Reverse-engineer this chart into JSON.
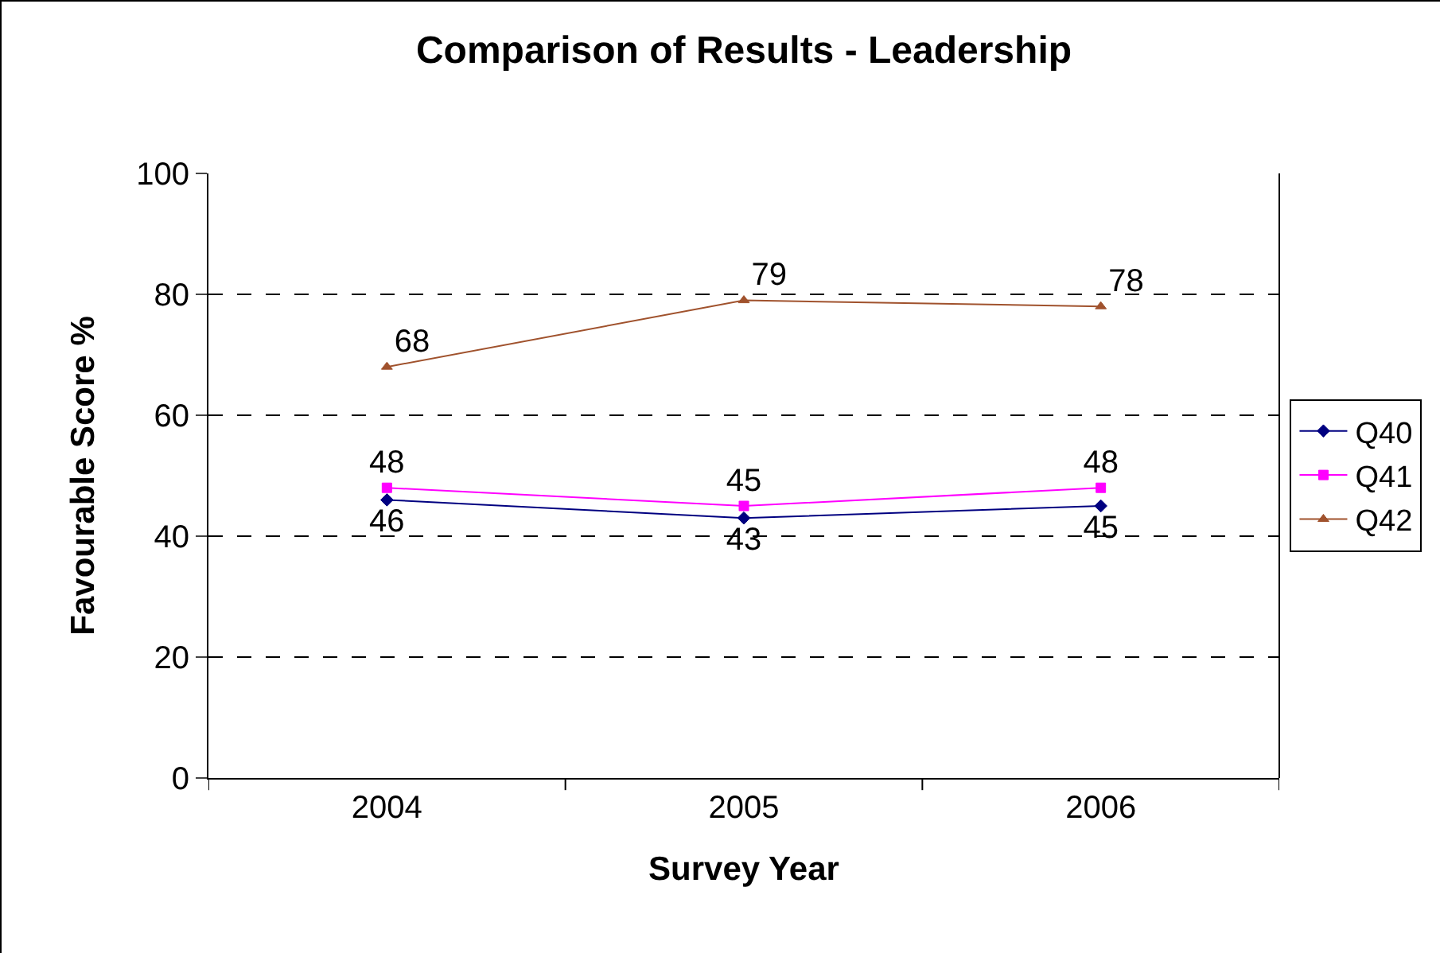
{
  "chart_data": {
    "type": "line",
    "title": "Comparison of Results - Leadership",
    "xlabel": "Survey Year",
    "ylabel": "Favourable Score %",
    "categories": [
      "2004",
      "2005",
      "2006"
    ],
    "series": [
      {
        "name": "Q40",
        "color": "#000080",
        "marker": "diamond",
        "values": [
          46,
          43,
          45
        ]
      },
      {
        "name": "Q41",
        "color": "#ff00ff",
        "marker": "square",
        "values": [
          48,
          45,
          48
        ]
      },
      {
        "name": "Q42",
        "color": "#a0522d",
        "marker": "triangle",
        "values": [
          68,
          79,
          78
        ]
      }
    ],
    "ylim": [
      0,
      100
    ],
    "yticks": [
      0,
      20,
      40,
      60,
      80,
      100
    ],
    "grid": "y",
    "line_style": "solid",
    "legend": "right",
    "data_labels": true
  }
}
